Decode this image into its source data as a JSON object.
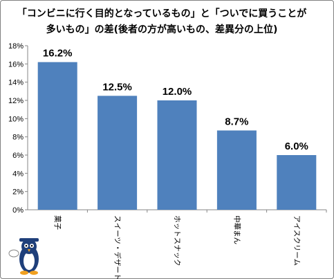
{
  "chart_data": {
    "type": "bar",
    "title_lines": [
      "「コンビニに行く目的となっているもの」と「ついでに買うことが",
      "多いもの」の差(後者の方が高いもの、差異分の上位)"
    ],
    "categories": [
      "菓子",
      "スイーツ・デザート",
      "ホットスナック",
      "中華まん",
      "アイスクリーム"
    ],
    "values": [
      16.2,
      12.5,
      12.0,
      8.7,
      6.0
    ],
    "data_labels": [
      "16.2%",
      "12.5%",
      "12.0%",
      "8.7%",
      "6.0%"
    ],
    "y_ticks": [
      "0%",
      "2%",
      "4%",
      "6%",
      "8%",
      "10%",
      "12%",
      "14%",
      "16%",
      "18%"
    ],
    "ylim": [
      0,
      18
    ],
    "grid": false,
    "bar_color": "#4f81bd"
  },
  "mascot": {
    "icon": "penguin-mascot-icon"
  }
}
